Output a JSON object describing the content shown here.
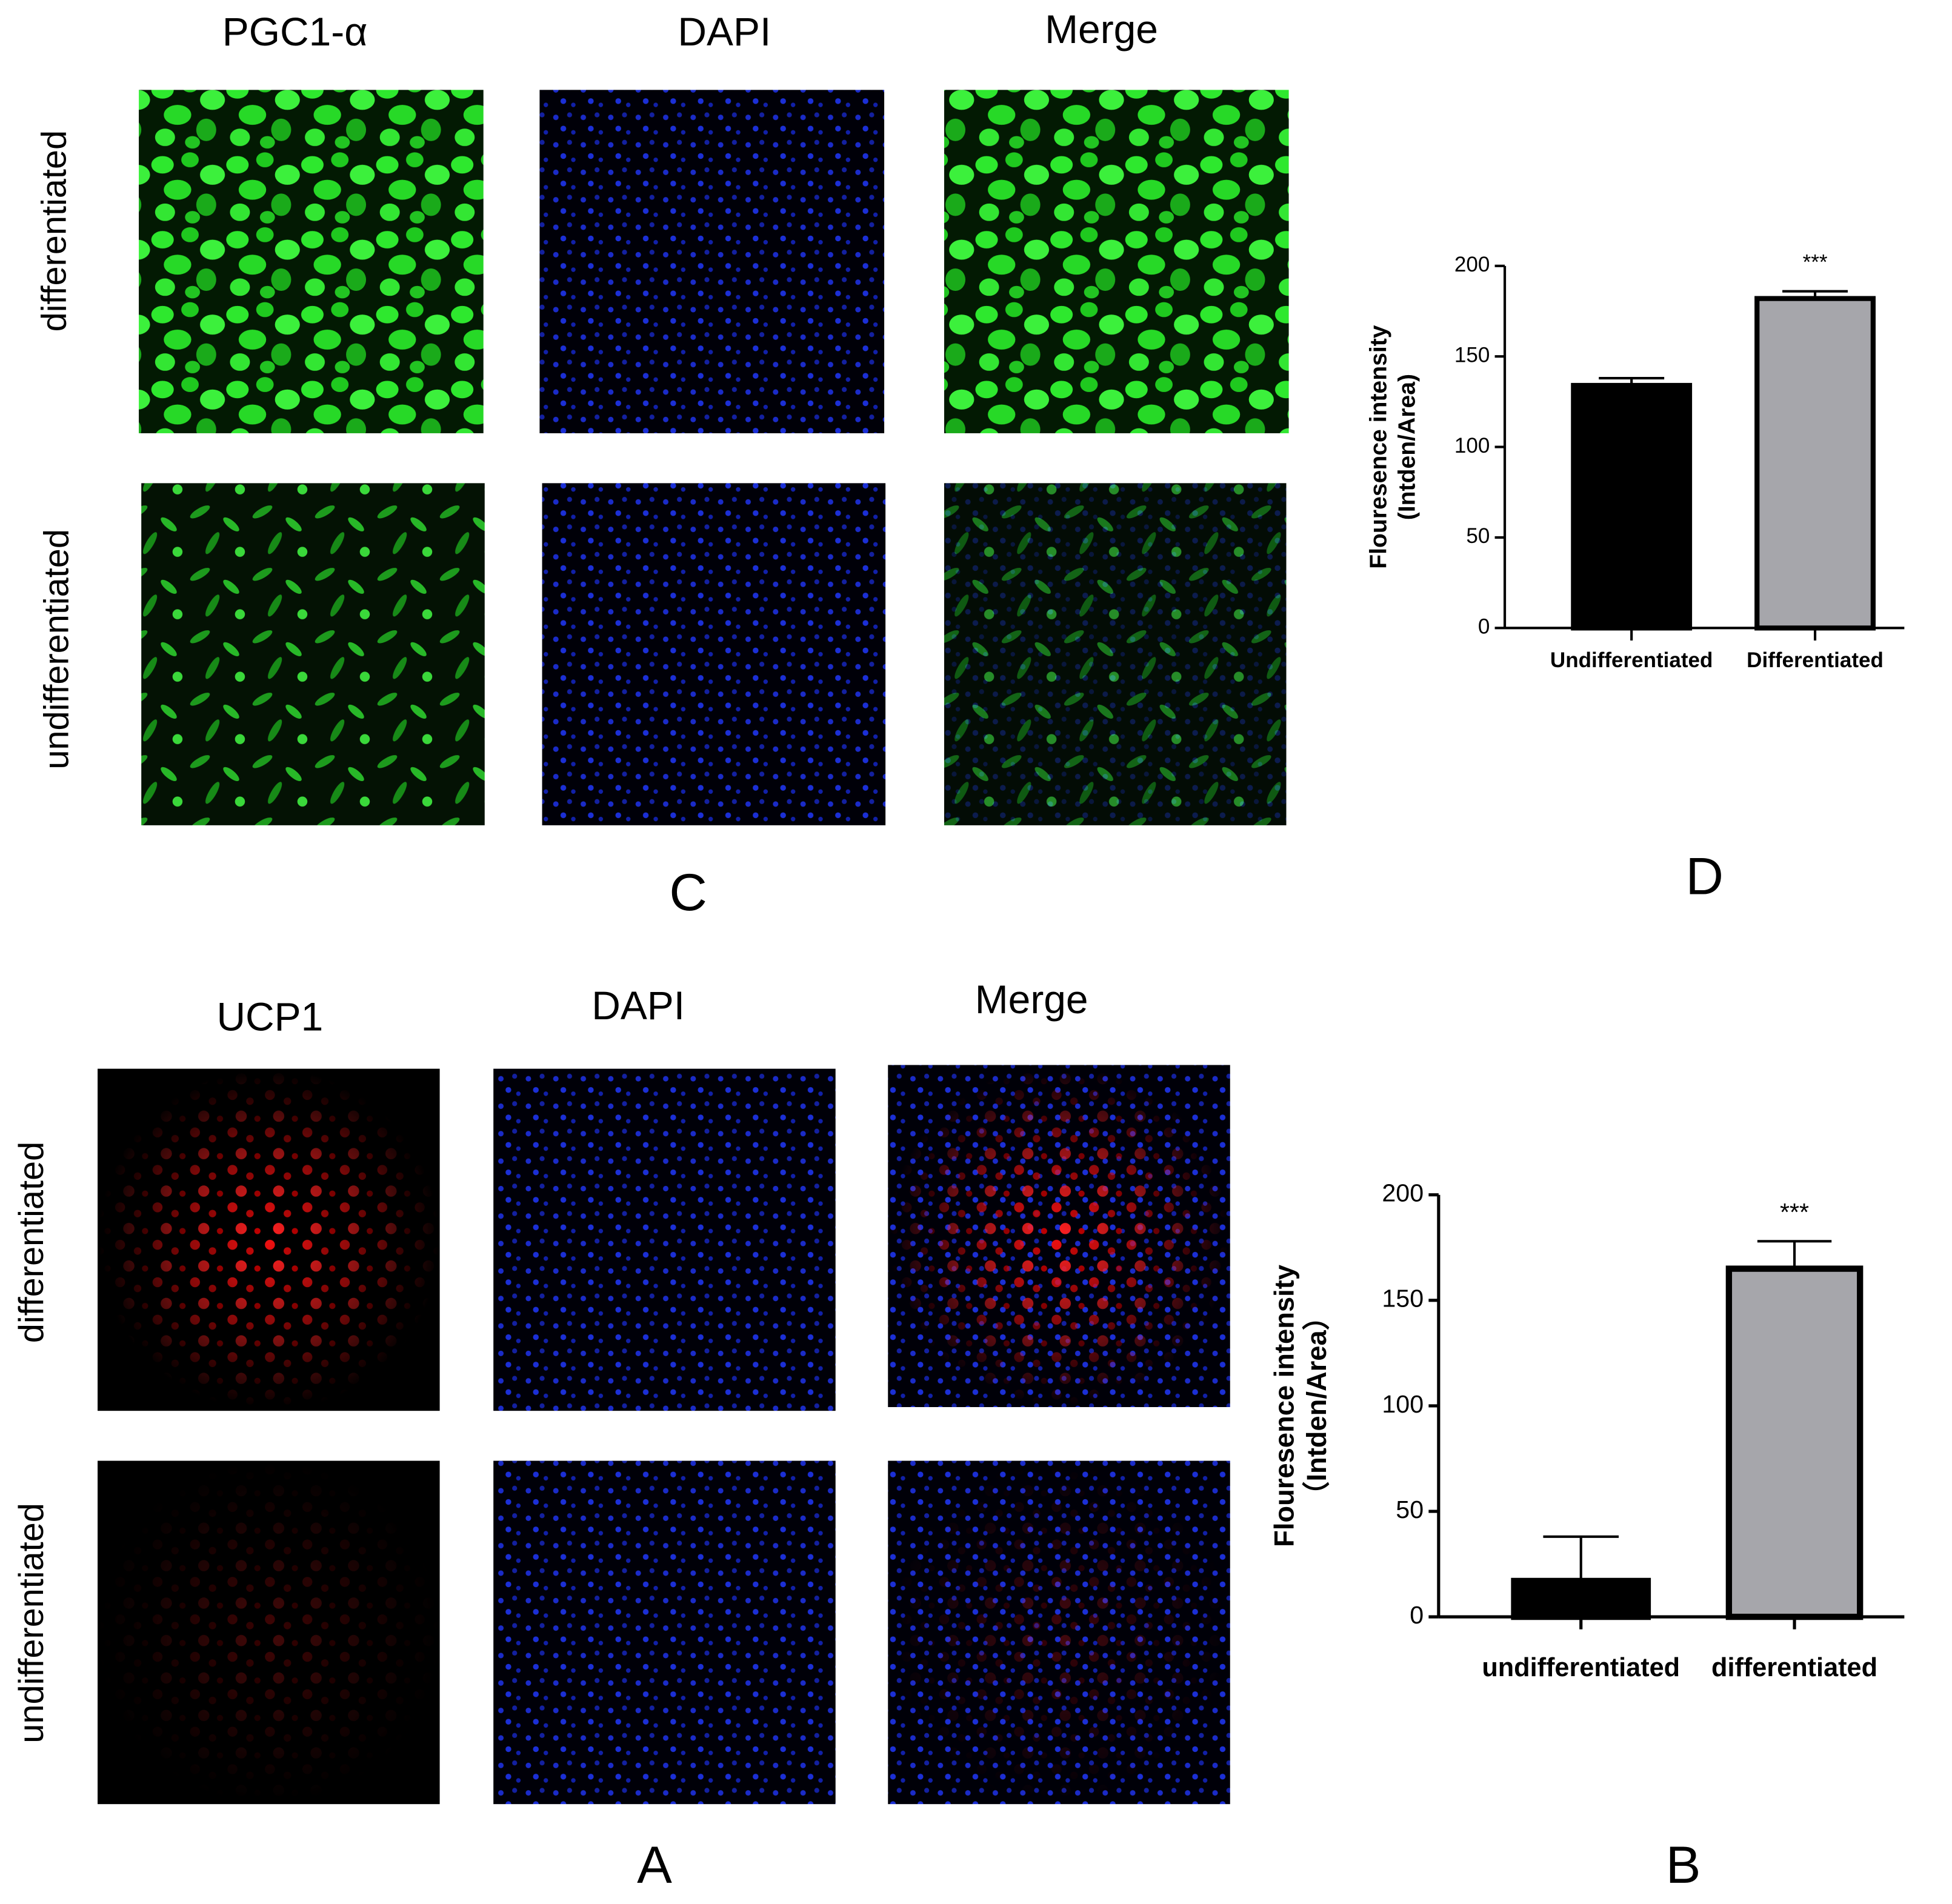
{
  "figure": {
    "panel_c": {
      "label": "C",
      "columns": [
        "PGC1-α",
        "DAPI",
        "Merge"
      ],
      "rows": [
        "differentiated",
        "undifferentiated"
      ]
    },
    "panel_d": {
      "label": "D"
    },
    "panel_a": {
      "label": "A",
      "columns": [
        "UCP1",
        "DAPI",
        "Merge"
      ],
      "rows": [
        "differentiated",
        "undifferentiated"
      ]
    },
    "panel_b": {
      "label": "B"
    }
  },
  "chart_data": [
    {
      "type": "bar",
      "ylabel": [
        "Flouresence intensity",
        "(Intden/Area)"
      ],
      "categories": [
        "Undifferentiated",
        "Differentiated"
      ],
      "values": [
        134,
        182
      ],
      "errors": [
        4,
        4
      ],
      "colors": [
        "#000000",
        "#a6a6ab"
      ],
      "annotation": "***",
      "ylim": [
        0,
        200
      ],
      "yticks": [
        0,
        50,
        100,
        150,
        200
      ]
    },
    {
      "type": "bar",
      "ylabel": [
        "Flouresence intensity",
        "（Intden/Area）"
      ],
      "categories": [
        "undifferentiated",
        "differentiated"
      ],
      "values": [
        17,
        165
      ],
      "errors": [
        21,
        13
      ],
      "colors": [
        "#000000",
        "#a6a6ab"
      ],
      "annotation": "***",
      "ylim": [
        0,
        200
      ],
      "yticks": [
        0,
        50,
        100,
        150,
        200
      ]
    }
  ]
}
